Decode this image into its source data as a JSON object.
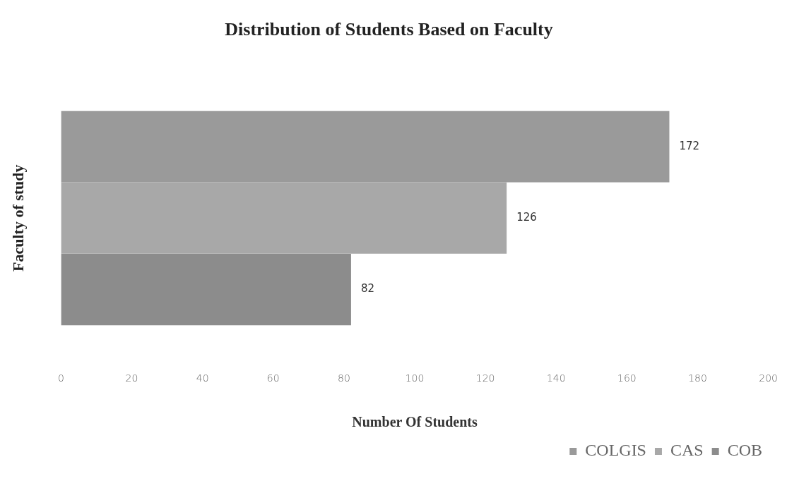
{
  "chart_data": {
    "type": "bar",
    "orientation": "horizontal",
    "title": "Distribution of Students Based on Faculty",
    "xlabel": "Number Of Students",
    "ylabel": "Faculty of study",
    "categories": [
      null
    ],
    "series": [
      {
        "name": "COLGIS",
        "color": "#9a9a9a",
        "values": [
          172
        ]
      },
      {
        "name": "CAS",
        "color": "#a8a8a8",
        "values": [
          126
        ]
      },
      {
        "name": "COB",
        "color": "#8c8c8c",
        "values": [
          82
        ]
      }
    ],
    "xlim": [
      0,
      200
    ],
    "xticks": [
      0,
      20,
      40,
      60,
      80,
      100,
      120,
      140,
      160,
      180,
      200
    ],
    "grid": false,
    "legend": "bottom",
    "data_labels": true
  }
}
